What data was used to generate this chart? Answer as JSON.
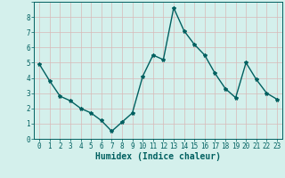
{
  "x": [
    0,
    1,
    2,
    3,
    4,
    5,
    6,
    7,
    8,
    9,
    10,
    11,
    12,
    13,
    14,
    15,
    16,
    17,
    18,
    19,
    20,
    21,
    22,
    23
  ],
  "y": [
    4.9,
    3.8,
    2.8,
    2.5,
    2.0,
    1.7,
    1.2,
    0.5,
    1.1,
    1.7,
    4.1,
    5.5,
    5.2,
    8.6,
    7.1,
    6.2,
    5.5,
    4.3,
    3.3,
    2.7,
    5.0,
    3.9,
    3.0,
    2.6
  ],
  "line_color": "#006060",
  "marker": "*",
  "marker_size": 3,
  "xlabel": "Humidex (Indice chaleur)",
  "xlabel_fontsize": 7,
  "xlabel_fontweight": "bold",
  "xlim": [
    -0.5,
    23.5
  ],
  "ylim": [
    0,
    9
  ],
  "yticks": [
    0,
    1,
    2,
    3,
    4,
    5,
    6,
    7,
    8
  ],
  "xticks": [
    0,
    1,
    2,
    3,
    4,
    5,
    6,
    7,
    8,
    9,
    10,
    11,
    12,
    13,
    14,
    15,
    16,
    17,
    18,
    19,
    20,
    21,
    22,
    23
  ],
  "grid_color": "#c8e8e0",
  "grid_color_major": "#d8b8b8",
  "bg_color": "#d4f0ec",
  "tick_fontsize": 5.5,
  "linewidth": 1.0
}
